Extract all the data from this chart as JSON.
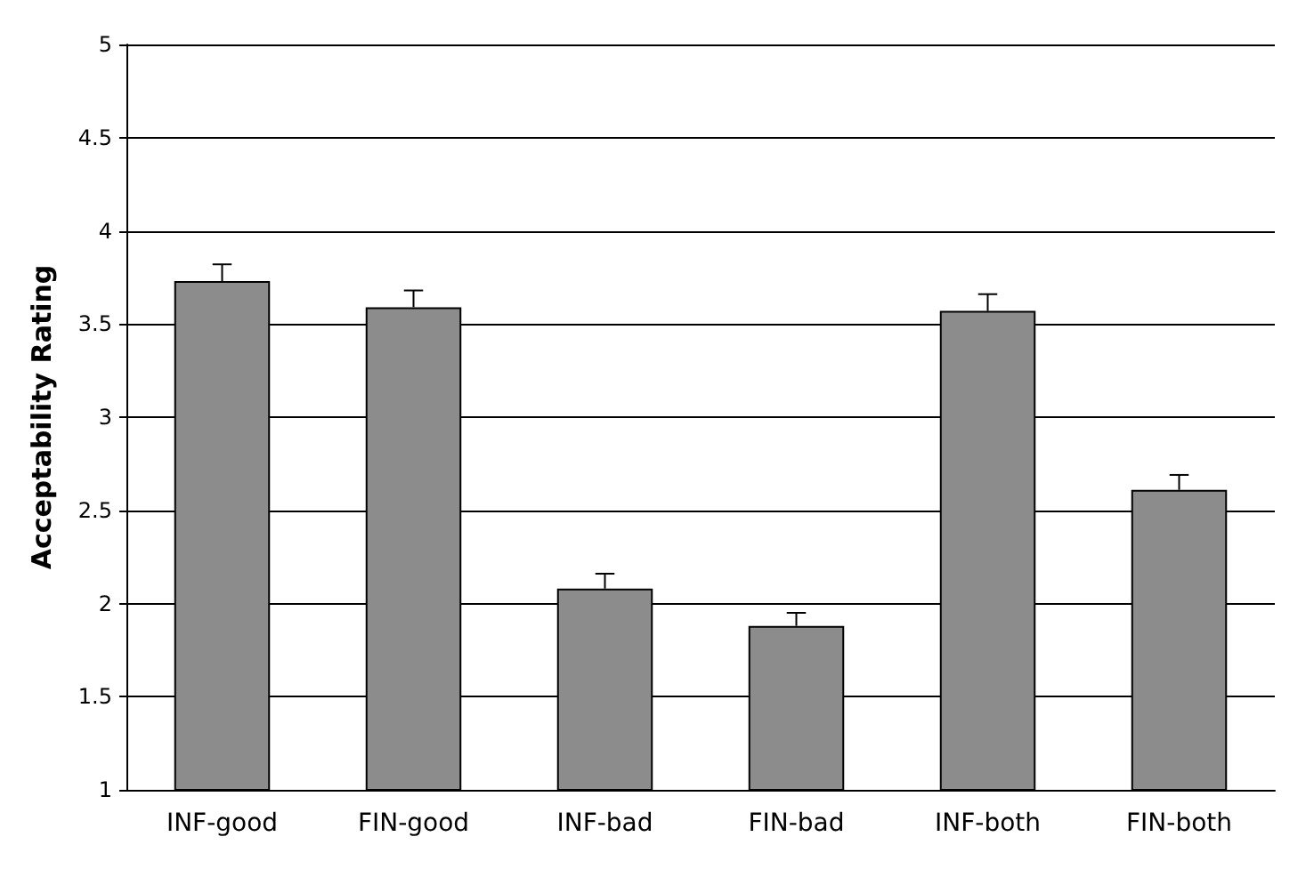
{
  "chart_data": {
    "type": "bar",
    "ylabel": "Acceptability Rating",
    "categories": [
      "INF-good",
      "FIN-good",
      "INF-bad",
      "FIN-bad",
      "INF-both",
      "FIN-both"
    ],
    "values": [
      3.73,
      3.59,
      2.08,
      1.88,
      3.57,
      2.61
    ],
    "errors": [
      [
        3.73,
        3.82
      ],
      [
        3.59,
        3.68
      ],
      [
        2.08,
        2.16
      ],
      [
        1.88,
        1.95
      ],
      [
        3.57,
        3.66
      ],
      [
        2.61,
        2.69
      ]
    ],
    "color": "#8c8c8c",
    "ylim": [
      1,
      5
    ],
    "yticks": [
      1,
      1.5,
      2,
      2.5,
      3,
      3.5,
      4,
      4.5,
      5
    ],
    "grid": "y"
  }
}
